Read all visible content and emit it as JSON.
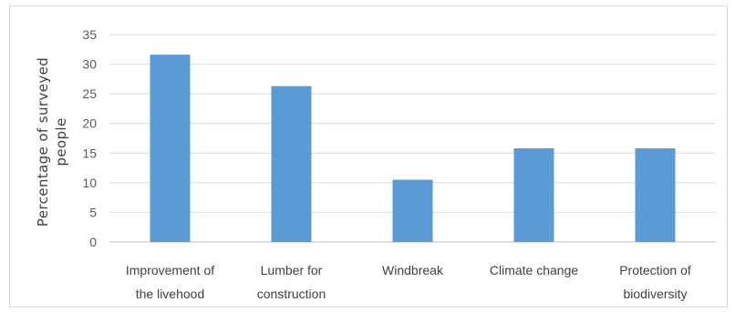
{
  "chart_data": {
    "type": "bar",
    "title": "",
    "xlabel": "",
    "ylabel": "Percentage of surveyed people",
    "ylabel_lines": [
      "Percentage of surveyed",
      "people"
    ],
    "categories": [
      [
        "Improvement of",
        "the livehood"
      ],
      [
        "Lumber for",
        "construction"
      ],
      [
        "Windbreak"
      ],
      [
        "Climate change"
      ],
      [
        "Protection of",
        "biodiversity"
      ]
    ],
    "values": [
      31.6,
      26.3,
      10.5,
      15.8,
      15.8
    ],
    "ylim": [
      0,
      35
    ],
    "yticks": [
      0,
      5,
      10,
      15,
      20,
      25,
      30,
      35
    ],
    "grid": true,
    "legend": "none",
    "colors": {
      "bar": "#5b9bd5",
      "grid": "#d9d9d9",
      "axis": "#bfbfbf"
    }
  }
}
